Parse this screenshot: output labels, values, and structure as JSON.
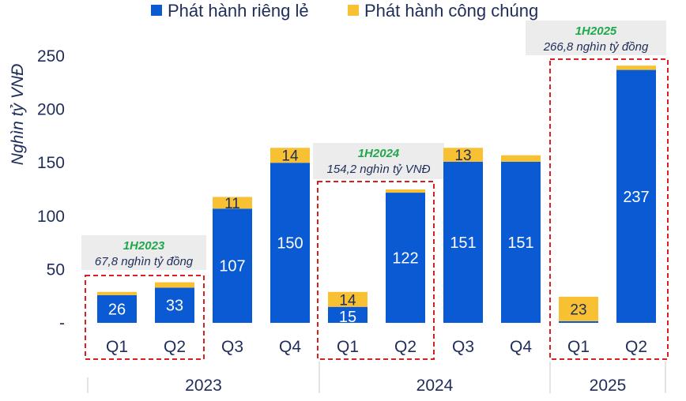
{
  "colors": {
    "private": "#0a5ad4",
    "public": "#f7c133",
    "axis_text": "#1f2d5a",
    "annotation_box": "#ececec",
    "annotation_title": "#1fa84b",
    "dashed_box": "#d92020"
  },
  "chart_data": {
    "type": "bar",
    "stacked": true,
    "ylabel": "Nghìn tỷ VNĐ",
    "ylim": [
      0,
      250
    ],
    "yticks": [
      "-",
      "50",
      "100",
      "150",
      "200",
      "250"
    ],
    "legend_position": "top",
    "grid": false,
    "categories": [
      "Q1",
      "Q2",
      "Q3",
      "Q4",
      "Q1",
      "Q2",
      "Q3",
      "Q4",
      "Q1",
      "Q2"
    ],
    "years": [
      {
        "label": "2023",
        "quarters": 4
      },
      {
        "label": "2024",
        "quarters": 4
      },
      {
        "label": "2025",
        "quarters": 2
      }
    ],
    "series": [
      {
        "name": "Phát hành riêng lẻ",
        "values": [
          26,
          33,
          107,
          150,
          15,
          122,
          151,
          151,
          1.5,
          237
        ],
        "labels": [
          "26",
          "33",
          "107",
          "150",
          "15",
          "122",
          "151",
          "151",
          "",
          "237"
        ]
      },
      {
        "name": "Phát hành công chúng",
        "values": [
          3,
          5,
          11,
          14,
          14,
          3,
          13,
          6,
          23,
          4
        ],
        "labels": [
          "",
          "",
          "11",
          "14",
          "14",
          "",
          "13",
          "",
          "23",
          ""
        ]
      }
    ],
    "annotations": [
      {
        "title": "1H2023",
        "text": "67,8 nghìn tỷ đồng"
      },
      {
        "title": "1H2024",
        "text": "154,2 nghìn tỷ VNĐ"
      },
      {
        "title": "1H2025",
        "text": "266,8 nghìn tỷ đồng"
      }
    ]
  }
}
